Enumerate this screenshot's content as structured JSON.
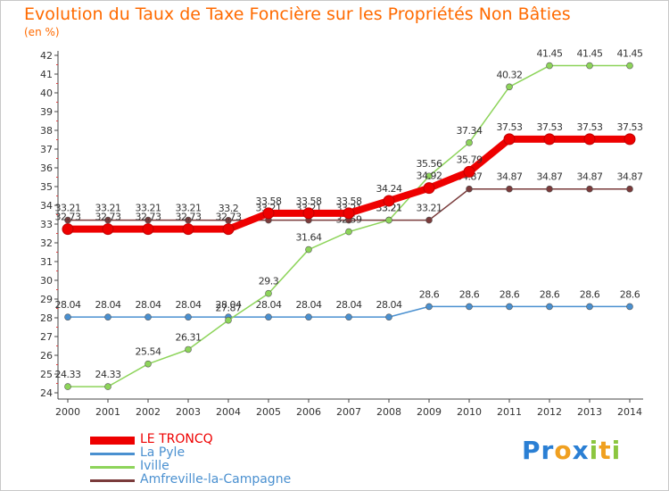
{
  "title": "Evolution du Taux de Taxe Foncière sur les Propriétés Non Bâties",
  "unit_label": "(en %)",
  "brand": {
    "text": "Proxiti",
    "letters": [
      {
        "ch": "P",
        "color": "#2a7fd4"
      },
      {
        "ch": "r",
        "color": "#2a7fd4"
      },
      {
        "ch": "o",
        "color": "#f0a020"
      },
      {
        "ch": "x",
        "color": "#2a7fd4"
      },
      {
        "ch": "i",
        "color": "#8cc63f"
      },
      {
        "ch": "t",
        "color": "#f0a020"
      },
      {
        "ch": "i",
        "color": "#8cc63f"
      }
    ]
  },
  "chart_data": {
    "type": "line",
    "title": "Evolution du Taux de Taxe Foncière sur les Propriétés Non Bâties",
    "ylabel": "(en %)",
    "xlabel": "",
    "ylim": [
      24,
      42
    ],
    "yticks": [
      "24",
      "25",
      "26",
      "27",
      "28",
      "29",
      "30",
      "31",
      "32",
      "33",
      "34",
      "35",
      "36",
      "37",
      "38",
      "39",
      "40",
      "41",
      "42"
    ],
    "categories": [
      "2000",
      "2001",
      "2002",
      "2003",
      "2004",
      "2005",
      "2006",
      "2007",
      "2008",
      "2009",
      "2010",
      "2011",
      "2012",
      "2013",
      "2014"
    ],
    "series": [
      {
        "name": "Amfreville-la-Campagne",
        "color": "#7a3b3b",
        "values": [
          33.21,
          33.21,
          33.21,
          33.21,
          33.2,
          33.21,
          33.21,
          33.21,
          33.21,
          33.21,
          34.87,
          34.87,
          34.87,
          34.87,
          34.87
        ],
        "labels": [
          "33.21",
          "33.21",
          "33.21",
          "33.21",
          "33.2",
          "33.21",
          "33.21",
          "33.21",
          "33.21",
          "33.21",
          "34.87",
          "34.87",
          "34.87",
          "34.87",
          "34.87"
        ]
      },
      {
        "name": "La Pyle",
        "color": "#4a90d0",
        "values": [
          28.04,
          28.04,
          28.04,
          28.04,
          28.04,
          28.04,
          28.04,
          28.04,
          28.04,
          28.6,
          28.6,
          28.6,
          28.6,
          28.6,
          28.6
        ],
        "labels": [
          "28.04",
          "28.04",
          "28.04",
          "28.04",
          "28.04",
          "28.04",
          "28.04",
          "28.04",
          "28.04",
          "28.6",
          "28.6",
          "28.6",
          "28.6",
          "28.6",
          "28.6"
        ]
      },
      {
        "name": "Iville",
        "color": "#8dd45a",
        "values": [
          24.33,
          24.33,
          25.54,
          26.31,
          27.87,
          29.3,
          31.64,
          32.59,
          33.21,
          35.56,
          37.34,
          40.32,
          41.45,
          41.45,
          41.45
        ],
        "labels": [
          "24.33",
          "24.33",
          "25.54",
          "26.31",
          "27.87",
          "29.3",
          "31.64",
          "32.59",
          "33.21",
          "35.56",
          "37.34",
          "40.32",
          "41.45",
          "41.45",
          "41.45"
        ]
      },
      {
        "name": "LE TRONCQ",
        "color": "#ee0000",
        "values": [
          32.73,
          32.73,
          32.73,
          32.73,
          32.73,
          33.58,
          33.58,
          33.58,
          34.24,
          34.92,
          35.79,
          37.53,
          37.53,
          37.53,
          37.53
        ],
        "labels": [
          "32.73",
          "32.73",
          "32.73",
          "32.73",
          "32.73",
          "33.58",
          "33.58",
          "33.58",
          "34.24",
          "34.92",
          "35.79",
          "37.53",
          "37.53",
          "37.53",
          "37.53"
        ]
      }
    ],
    "legend": [
      "LE TRONCQ",
      "La Pyle",
      "Iville",
      "Amfreville-la-Campagne"
    ],
    "legend_position": "bottom-left",
    "grid": false
  }
}
